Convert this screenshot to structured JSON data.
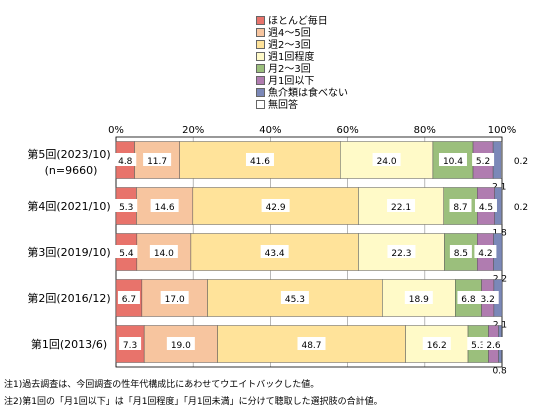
{
  "legend": [
    {
      "label": "ほとんど毎日",
      "color": "#e8736b"
    },
    {
      "label": "週4～5回",
      "color": "#f7c59f"
    },
    {
      "label": "週2～3回",
      "color": "#ffe39a"
    },
    {
      "label": "週1回程度",
      "color": "#fffac8"
    },
    {
      "label": "月2～3回",
      "color": "#9bbf7c"
    },
    {
      "label": "月1回以下",
      "color": "#b07cb0"
    },
    {
      "label": "魚介類は食べない",
      "color": "#7b88b8"
    },
    {
      "label": "無回答",
      "color": "#ffffff"
    }
  ],
  "chart_data": {
    "type": "bar",
    "orientation": "horizontal",
    "stacked": true,
    "xlim": [
      0,
      100
    ],
    "x_ticks": [
      "0%",
      "20%",
      "40%",
      "60%",
      "80%",
      "100%"
    ],
    "grid": true,
    "legend_position": "top-right",
    "categories": [
      {
        "label": "第5回(2023/10)",
        "sublabel": "(n=9660)"
      },
      {
        "label": "第4回(2021/10)",
        "sublabel": ""
      },
      {
        "label": "第3回(2019/10)",
        "sublabel": ""
      },
      {
        "label": "第2回(2016/12)",
        "sublabel": ""
      },
      {
        "label": "第1回(2013/6)",
        "sublabel": ""
      }
    ],
    "series": [
      {
        "name": "ほとんど毎日",
        "values": [
          4.8,
          5.3,
          5.4,
          6.7,
          7.3
        ]
      },
      {
        "name": "週4～5回",
        "values": [
          11.7,
          14.6,
          14.0,
          17.0,
          19.0
        ]
      },
      {
        "name": "週2～3回",
        "values": [
          41.6,
          42.9,
          43.4,
          45.3,
          48.7
        ]
      },
      {
        "name": "週1回程度",
        "values": [
          24.0,
          22.1,
          22.3,
          18.9,
          16.2
        ]
      },
      {
        "name": "月2～3回",
        "values": [
          10.4,
          8.7,
          8.5,
          6.8,
          5.3
        ]
      },
      {
        "name": "月1回以下",
        "values": [
          5.2,
          4.5,
          4.2,
          3.2,
          2.6
        ]
      },
      {
        "name": "魚介類は食べない",
        "values": [
          2.1,
          1.8,
          2.2,
          2.1,
          0.8
        ]
      },
      {
        "name": "無回答",
        "values": [
          0.2,
          0.2,
          0.0,
          0.0,
          0.0
        ]
      }
    ],
    "value_labels": [
      [
        "4.8",
        "11.7",
        "41.6",
        "24.0",
        "10.4",
        "5.2",
        "2.1",
        "0.2"
      ],
      [
        "5.3",
        "14.6",
        "42.9",
        "22.1",
        "8.7",
        "4.5",
        "1.8",
        "0.2"
      ],
      [
        "5.4",
        "14.0",
        "43.4",
        "22.3",
        "8.5",
        "4.2",
        "2.2",
        ""
      ],
      [
        "6.7",
        "17.0",
        "45.3",
        "18.9",
        "6.8",
        "3.2",
        "2.1",
        ""
      ],
      [
        "7.3",
        "19.0",
        "48.7",
        "16.2",
        "5.3",
        "2.6",
        "0.8",
        ""
      ]
    ]
  },
  "notes": [
    "注1)過去調査は、今回調査の性年代構成比にあわせてウエイトバックした値。",
    "注2)第1回の「月1回以下」は「月1回程度」「月1回未満」に分けて聴取した選択肢の合計値。"
  ]
}
